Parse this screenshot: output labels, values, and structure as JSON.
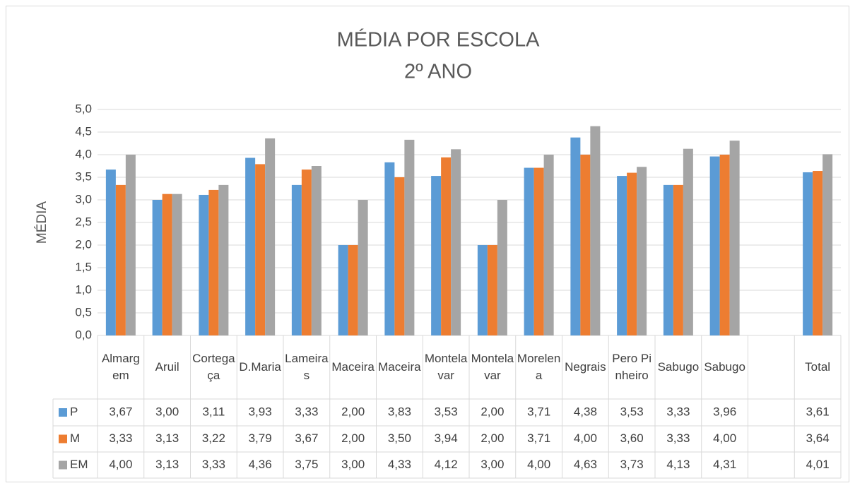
{
  "chart_data": {
    "type": "bar",
    "title": "MÉDIA POR ESCOLA",
    "subtitle": "2º ANO",
    "y_label": "MÉDIA",
    "categories": [
      "Almargem",
      "Aruil",
      "Cortegaça",
      "D.Maria",
      "Lameiras",
      "Maceira",
      "Maceira",
      "Montelavar",
      "Montelavar",
      "Morelena",
      "Negrais",
      "Pero Pinheiro",
      "Sabugo",
      "Sabugo",
      null,
      "Total"
    ],
    "series": [
      {
        "name": "P",
        "color": "#5b9bd5",
        "values": [
          3.67,
          3.0,
          3.11,
          3.93,
          3.33,
          2.0,
          3.83,
          3.53,
          2.0,
          3.71,
          4.38,
          3.53,
          3.33,
          3.96,
          null,
          3.61
        ],
        "value_labels": [
          "3,67",
          "3,00",
          "3,11",
          "3,93",
          "3,33",
          "2,00",
          "3,83",
          "3,53",
          "2,00",
          "3,71",
          "4,38",
          "3,53",
          "3,33",
          "3,96",
          null,
          "3,61"
        ]
      },
      {
        "name": "M",
        "color": "#ed7d31",
        "values": [
          3.33,
          3.13,
          3.22,
          3.79,
          3.67,
          2.0,
          3.5,
          3.94,
          2.0,
          3.71,
          4.0,
          3.6,
          3.33,
          4.0,
          null,
          3.64
        ],
        "value_labels": [
          "3,33",
          "3,13",
          "3,22",
          "3,79",
          "3,67",
          "2,00",
          "3,50",
          "3,94",
          "2,00",
          "3,71",
          "4,00",
          "3,60",
          "3,33",
          "4,00",
          null,
          "3,64"
        ]
      },
      {
        "name": "EM",
        "color": "#a5a5a5",
        "values": [
          4.0,
          3.13,
          3.33,
          4.36,
          3.75,
          3.0,
          4.33,
          4.12,
          3.0,
          4.0,
          4.63,
          3.73,
          4.13,
          4.31,
          null,
          4.01
        ],
        "value_labels": [
          "4,00",
          "3,13",
          "3,33",
          "4,36",
          "3,75",
          "3,00",
          "4,33",
          "4,12",
          "3,00",
          "4,00",
          "4,63",
          "3,73",
          "4,13",
          "4,31",
          null,
          "4,01"
        ]
      }
    ],
    "ylim": [
      0,
      5
    ],
    "yticks": [
      {
        "value": 0,
        "label": "0,0"
      },
      {
        "value": 0.5,
        "label": "0,5"
      },
      {
        "value": 1,
        "label": "1,0"
      },
      {
        "value": 1.5,
        "label": "1,5"
      },
      {
        "value": 2,
        "label": "2,0"
      },
      {
        "value": 2.5,
        "label": "2,5"
      },
      {
        "value": 3,
        "label": "3,0"
      },
      {
        "value": 3.5,
        "label": "3,5"
      },
      {
        "value": 4,
        "label": "4,0"
      },
      {
        "value": 4.5,
        "label": "4,5"
      },
      {
        "value": 5,
        "label": "5,0"
      }
    ],
    "grid": true
  }
}
